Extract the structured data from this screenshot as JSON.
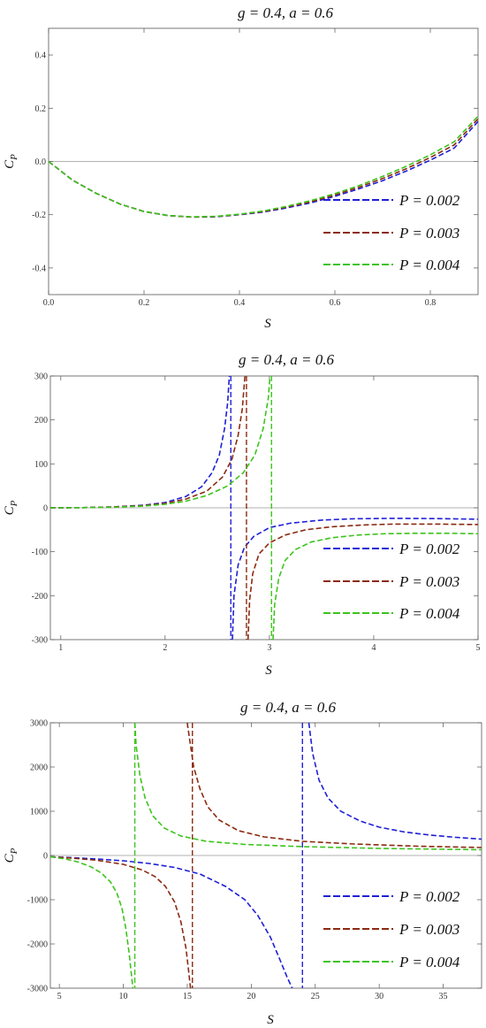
{
  "chart_data": [
    {
      "type": "line",
      "title": "g = 0.4, a = 0.6",
      "xlabel": "S",
      "ylabel": "C",
      "ylabel_sub": "P",
      "xlim": [
        0,
        0.9
      ],
      "ylim": [
        -0.5,
        0.5
      ],
      "x_ticks": [
        {
          "v": 0.0,
          "t": "0.0"
        },
        {
          "v": 0.2,
          "t": "0.2"
        },
        {
          "v": 0.4,
          "t": "0.4"
        },
        {
          "v": 0.6,
          "t": "0.6"
        },
        {
          "v": 0.8,
          "t": "0.8"
        }
      ],
      "y_ticks": [
        {
          "v": 0.4,
          "t": "0.4"
        },
        {
          "v": 0.2,
          "t": "0.2"
        },
        {
          "v": 0.0,
          "t": "0.0"
        },
        {
          "v": -0.2,
          "t": "-0.2"
        },
        {
          "v": -0.4,
          "t": "-0.4"
        }
      ],
      "legend": "right",
      "series": [
        {
          "name": "P = 0.002",
          "color": "#1f1fd6",
          "x": [
            0,
            0.05,
            0.1,
            0.15,
            0.2,
            0.25,
            0.3,
            0.35,
            0.4,
            0.45,
            0.5,
            0.55,
            0.6,
            0.65,
            0.7,
            0.75,
            0.8,
            0.85,
            0.9
          ],
          "y": [
            0,
            -0.07,
            -0.12,
            -0.16,
            -0.188,
            -0.203,
            -0.209,
            -0.208,
            -0.2,
            -0.19,
            -0.174,
            -0.155,
            -0.131,
            -0.103,
            -0.072,
            -0.036,
            0.005,
            0.05,
            0.15
          ]
        },
        {
          "name": "P = 0.003",
          "color": "#8b2a10",
          "x": [
            0,
            0.05,
            0.1,
            0.15,
            0.2,
            0.25,
            0.3,
            0.35,
            0.4,
            0.45,
            0.5,
            0.55,
            0.6,
            0.65,
            0.7,
            0.75,
            0.8,
            0.85,
            0.9
          ],
          "y": [
            0,
            -0.07,
            -0.12,
            -0.16,
            -0.188,
            -0.203,
            -0.209,
            -0.207,
            -0.199,
            -0.188,
            -0.171,
            -0.151,
            -0.126,
            -0.097,
            -0.064,
            -0.027,
            0.015,
            0.062,
            0.16
          ]
        },
        {
          "name": "P = 0.004",
          "color": "#3cc41c",
          "x": [
            0,
            0.05,
            0.1,
            0.15,
            0.2,
            0.25,
            0.3,
            0.35,
            0.4,
            0.45,
            0.5,
            0.55,
            0.6,
            0.65,
            0.7,
            0.75,
            0.8,
            0.85,
            0.9
          ],
          "y": [
            0,
            -0.07,
            -0.12,
            -0.16,
            -0.188,
            -0.203,
            -0.208,
            -0.206,
            -0.198,
            -0.186,
            -0.168,
            -0.147,
            -0.121,
            -0.091,
            -0.056,
            -0.018,
            0.025,
            0.074,
            0.17
          ]
        }
      ]
    },
    {
      "type": "line",
      "title": "g = 0.4, a = 0.6",
      "xlabel": "S",
      "ylabel": "C",
      "ylabel_sub": "P",
      "xlim": [
        0.9,
        5
      ],
      "ylim": [
        -300,
        300
      ],
      "x_ticks": [
        {
          "v": 1,
          "t": "1"
        },
        {
          "v": 2,
          "t": "2"
        },
        {
          "v": 3,
          "t": "3"
        },
        {
          "v": 4,
          "t": "4"
        },
        {
          "v": 5,
          "t": "5"
        }
      ],
      "y_ticks": [
        {
          "v": 300,
          "t": "300"
        },
        {
          "v": 200,
          "t": "200"
        },
        {
          "v": 100,
          "t": "100"
        },
        {
          "v": 0,
          "t": "0"
        },
        {
          "v": -100,
          "t": "-100"
        },
        {
          "v": -200,
          "t": "-200"
        },
        {
          "v": -300,
          "t": "-300"
        }
      ],
      "legend": "bottom-right",
      "series": [
        {
          "name": "P = 0.002",
          "color": "#1f1fd6",
          "x_asymptote": 2.63,
          "left": {
            "x": [
              0.9,
              1.2,
              1.5,
              1.8,
              2.0,
              2.2,
              2.35,
              2.45,
              2.52,
              2.57,
              2.6,
              2.615
            ],
            "y": [
              0,
              0.5,
              2,
              6,
              12,
              26,
              48,
              80,
              120,
              180,
              240,
              300
            ]
          },
          "right": {
            "x": [
              2.645,
              2.66,
              2.7,
              2.76,
              2.85,
              3.0,
              3.2,
              3.5,
              3.8,
              4.2,
              4.6,
              5.0
            ],
            "y": [
              -300,
              -200,
              -130,
              -90,
              -65,
              -45,
              -35,
              -28,
              -25,
              -24,
              -24.5,
              -26
            ]
          }
        },
        {
          "name": "P = 0.003",
          "color": "#8b2a10",
          "x_asymptote": 2.78,
          "left": {
            "x": [
              0.9,
              1.2,
              1.5,
              1.8,
              2.0,
              2.2,
              2.4,
              2.55,
              2.64,
              2.7,
              2.74,
              2.765
            ],
            "y": [
              0,
              0.5,
              2,
              5,
              10,
              20,
              38,
              70,
              110,
              165,
              225,
              300
            ]
          },
          "right": {
            "x": [
              2.795,
              2.81,
              2.84,
              2.9,
              3.0,
              3.15,
              3.35,
              3.6,
              3.9,
              4.2,
              4.6,
              5.0
            ],
            "y": [
              -300,
              -210,
              -150,
              -105,
              -80,
              -62,
              -50,
              -43,
              -39,
              -37,
              -37,
              -38
            ]
          }
        },
        {
          "name": "P = 0.004",
          "color": "#3cc41c",
          "x_asymptote": 3.02,
          "left": {
            "x": [
              0.9,
              1.2,
              1.5,
              1.8,
              2.0,
              2.2,
              2.4,
              2.6,
              2.75,
              2.86,
              2.94,
              2.99,
              3.005
            ],
            "y": [
              0,
              0.5,
              1.5,
              4,
              8,
              15,
              28,
              50,
              80,
              120,
              180,
              250,
              300
            ]
          },
          "right": {
            "x": [
              3.035,
              3.05,
              3.09,
              3.15,
              3.25,
              3.4,
              3.6,
              3.85,
              4.1,
              4.4,
              4.7,
              5.0
            ],
            "y": [
              -300,
              -220,
              -160,
              -120,
              -95,
              -78,
              -68,
              -62,
              -59,
              -58,
              -58,
              -59
            ]
          }
        }
      ]
    },
    {
      "type": "line",
      "title": "g = 0.4, a = 0.6",
      "xlabel": "S",
      "ylabel": "C",
      "ylabel_sub": "P",
      "xlim": [
        4.3,
        38
      ],
      "ylim": [
        -3000,
        3000
      ],
      "x_ticks": [
        {
          "v": 5,
          "t": "5"
        },
        {
          "v": 10,
          "t": "10"
        },
        {
          "v": 15,
          "t": "15"
        },
        {
          "v": 20,
          "t": "20"
        },
        {
          "v": 25,
          "t": "25"
        },
        {
          "v": 30,
          "t": "30"
        },
        {
          "v": 35,
          "t": "35"
        }
      ],
      "y_ticks": [
        {
          "v": 3000,
          "t": "3000"
        },
        {
          "v": 2000,
          "t": "2000"
        },
        {
          "v": 1000,
          "t": "1000"
        },
        {
          "v": 0,
          "t": "0"
        },
        {
          "v": -1000,
          "t": "-1000"
        },
        {
          "v": -2000,
          "t": "-2000"
        },
        {
          "v": -3000,
          "t": "-3000"
        }
      ],
      "legend": "bottom-right",
      "series": [
        {
          "name": "P = 0.002",
          "color": "#1f1fd6",
          "x_asymptote": 24.0,
          "left": {
            "x": [
              4.3,
              6,
              8,
              10,
              12,
              14,
              16,
              18,
              19.5,
              20.5,
              21.5,
              22.3,
              22.8,
              23.2
            ],
            "y": [
              -30,
              -50,
              -80,
              -120,
              -180,
              -270,
              -420,
              -700,
              -1000,
              -1350,
              -1850,
              -2400,
              -2750,
              -3000
            ]
          },
          "right": {
            "x": [
              24.5,
              24.8,
              25.3,
              26,
              27,
              28.5,
              30,
              32,
              34,
              36,
              38
            ],
            "y": [
              3000,
              2300,
              1700,
              1300,
              1000,
              780,
              640,
              530,
              460,
              410,
              370
            ]
          }
        },
        {
          "name": "P = 0.003",
          "color": "#8b2a10",
          "x_asymptote": 15.4,
          "left": {
            "x": [
              4.3,
              6,
              8,
              10,
              11.5,
              12.5,
              13.3,
              14,
              14.5,
              14.9,
              15.1,
              15.25
            ],
            "y": [
              -30,
              -60,
              -110,
              -200,
              -330,
              -480,
              -700,
              -1050,
              -1500,
              -2100,
              -2600,
              -3000
            ]
          },
          "right": {
            "x": [
              15.0,
              15.2,
              15.5,
              16,
              16.6,
              17.5,
              19,
              21,
              24,
              28,
              33,
              38
            ],
            "y": [
              3000,
              2600,
              2000,
              1500,
              1100,
              800,
              560,
              420,
              320,
              260,
              210,
              180
            ]
          }
        },
        {
          "name": "P = 0.004",
          "color": "#3cc41c",
          "x_asymptote": 10.9,
          "left": {
            "x": [
              4.3,
              5.5,
              6.5,
              7.5,
              8.3,
              9,
              9.5,
              9.9,
              10.2,
              10.45,
              10.6,
              10.75
            ],
            "y": [
              -30,
              -80,
              -150,
              -260,
              -400,
              -600,
              -850,
              -1200,
              -1650,
              -2200,
              -2600,
              -3000
            ]
          },
          "right": {
            "x": [
              10.9,
              11.0,
              11.3,
              11.7,
              12.3,
              13.2,
              14.5,
              16.5,
              19.5,
              24,
              30,
              38
            ],
            "y": [
              3000,
              2500,
              1800,
              1300,
              900,
              620,
              440,
              320,
              250,
              200,
              160,
              130
            ]
          }
        }
      ]
    }
  ]
}
